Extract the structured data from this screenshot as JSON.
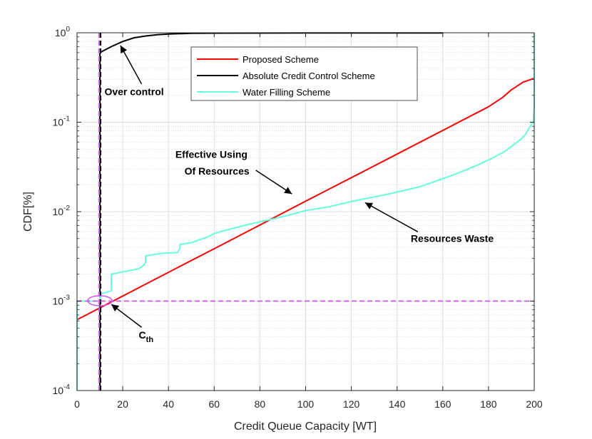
{
  "chart_data": {
    "type": "line",
    "xlabel": "Credit Queue Capacity [WT]",
    "ylabel": "CDF[%]",
    "xlim": [
      0,
      200
    ],
    "ylim": [
      0.0001,
      1
    ],
    "yscale": "log",
    "grid": true,
    "legend_position": "top-center",
    "x_ticks": [
      "0",
      "20",
      "40",
      "60",
      "80",
      "100",
      "120",
      "140",
      "160",
      "180",
      "200"
    ],
    "y_ticks": [
      {
        "base": "10",
        "exp": "-4",
        "value": 0.0001
      },
      {
        "base": "10",
        "exp": "-3",
        "value": 0.001
      },
      {
        "base": "10",
        "exp": "-2",
        "value": 0.01
      },
      {
        "base": "10",
        "exp": "-1",
        "value": 0.1
      },
      {
        "base": "10",
        "exp": "0",
        "value": 1
      }
    ],
    "series": [
      {
        "name": "Proposed Scheme",
        "color": "#ff0000",
        "x": [
          0,
          20,
          40,
          60,
          80,
          100,
          120,
          140,
          160,
          180,
          186,
          190,
          195,
          200
        ],
        "y": [
          0.00062,
          0.00114,
          0.0021,
          0.00385,
          0.0071,
          0.0131,
          0.024,
          0.044,
          0.081,
          0.149,
          0.188,
          0.23,
          0.28,
          0.31
        ]
      },
      {
        "name": "Absolute Credit Control Scheme",
        "color": "#000000",
        "x": [
          10,
          10,
          15,
          20,
          25,
          30,
          35,
          40,
          50,
          60,
          100,
          160
        ],
        "y": [
          0.0001,
          0.6,
          0.7,
          0.8,
          0.88,
          0.92,
          0.95,
          0.97,
          0.985,
          0.99,
          0.995,
          0.997
        ]
      },
      {
        "name": "Water Filling Scheme",
        "color": "#66ffdd",
        "x": [
          0,
          0,
          10,
          10,
          15,
          15,
          27,
          29,
          30,
          30,
          36,
          44,
          45,
          45,
          50,
          53,
          57,
          60,
          65,
          75,
          85,
          90,
          95,
          100,
          110,
          120,
          135,
          150,
          165,
          175,
          182,
          187,
          191,
          194,
          196,
          197,
          198,
          199,
          199.5,
          200,
          200
        ],
        "y": [
          0.0001,
          0.001,
          0.001,
          0.0012,
          0.0013,
          0.002,
          0.0023,
          0.0025,
          0.0027,
          0.0032,
          0.0034,
          0.0035,
          0.0039,
          0.0043,
          0.0045,
          0.0048,
          0.0052,
          0.0057,
          0.0062,
          0.0072,
          0.0082,
          0.0088,
          0.0095,
          0.0103,
          0.0113,
          0.013,
          0.0155,
          0.019,
          0.026,
          0.033,
          0.04,
          0.047,
          0.056,
          0.064,
          0.072,
          0.08,
          0.088,
          0.096,
          0.1,
          0.15,
          1.0
        ]
      }
    ],
    "reference_lines": [
      {
        "orientation": "vertical",
        "x": 10,
        "color": "#cc55ee",
        "style": "dashed"
      },
      {
        "orientation": "horizontal",
        "y": 0.001,
        "color": "#cc55ee",
        "style": "dashed"
      }
    ],
    "annotations": [
      {
        "text": "Over control",
        "x": 12,
        "y": 0.2,
        "arrow_to_x": 19,
        "arrow_to_y": 0.72
      },
      {
        "text": "Effective Using",
        "x": 43,
        "y": 0.04
      },
      {
        "text": "Of Resources",
        "x": 47,
        "y": 0.026,
        "arrow_to_x": 94,
        "arrow_to_y": 0.0158
      },
      {
        "text": "Resources Waste",
        "x": 146,
        "y": 0.0046,
        "arrow_to_x": 126,
        "arrow_to_y": 0.0126
      },
      {
        "text_main": "C",
        "text_sub": "th",
        "x": 27,
        "y": 0.00038,
        "arrow_to_x": 15,
        "arrow_to_y": 0.00092
      }
    ],
    "legend": [
      {
        "label": "Proposed Scheme",
        "color": "#ff0000"
      },
      {
        "label": "Absolute Credit Control Scheme",
        "color": "#000000"
      },
      {
        "label": "Water Filling Scheme",
        "color": "#66ffdd"
      }
    ]
  }
}
